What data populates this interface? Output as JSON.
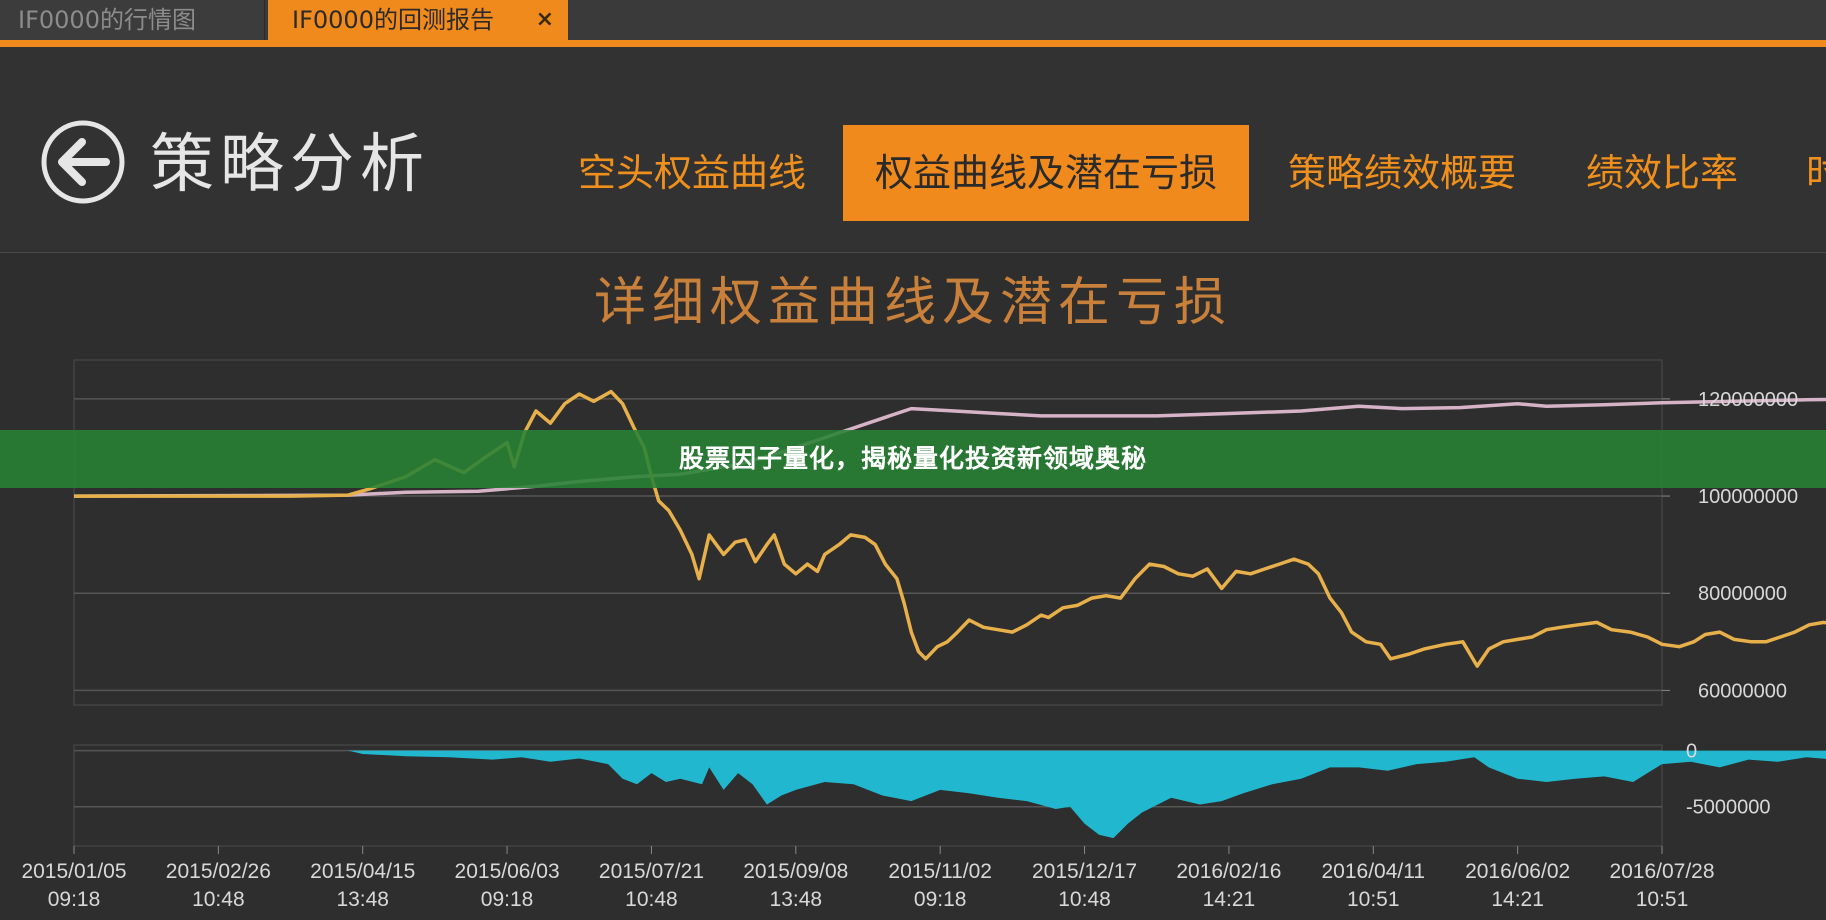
{
  "tabs": [
    {
      "label": "IF0000的行情图",
      "active": false
    },
    {
      "label": "IF0000的回测报告",
      "active": true
    }
  ],
  "tab_close_glyph": "×",
  "header": {
    "back_icon": "back-arrow-circle-icon",
    "title": "策略分析",
    "nav": [
      "空头权益曲线",
      "权益曲线及潜在亏损",
      "策略绩效概要",
      "绩效比率",
      "时"
    ],
    "active_nav_index": 1
  },
  "colors": {
    "accent": "#f08a1c",
    "equity_line": "#e8b04a",
    "short_equity_line": "#d7b3c7",
    "drawdown_fill": "#21b8cf",
    "background": "#2e2e2e"
  },
  "banner": {
    "text": "股票因子量化，揭秘量化投资新领域奥秘"
  },
  "chart_data": [
    {
      "type": "line",
      "title": "详细权益曲线及潜在亏损",
      "ylim": [
        57000000,
        128000000
      ],
      "yticks": [
        120000000,
        100000000,
        80000000,
        60000000
      ],
      "ytick_labels": [
        "120000000",
        "100000000",
        "80000000",
        "60000000"
      ],
      "x_labels": [
        [
          "2015/01/05",
          "09:18"
        ],
        [
          "2015/02/26",
          "10:48"
        ],
        [
          "2015/04/15",
          "13:48"
        ],
        [
          "2015/06/03",
          "09:18"
        ],
        [
          "2015/07/21",
          "10:48"
        ],
        [
          "2015/09/08",
          "13:48"
        ],
        [
          "2015/11/02",
          "09:18"
        ],
        [
          "2015/12/17",
          "10:48"
        ],
        [
          "2016/02/16",
          "14:21"
        ],
        [
          "2016/04/11",
          "10:51"
        ],
        [
          "2016/06/02",
          "14:21"
        ],
        [
          "2016/07/28",
          "10:51"
        ]
      ],
      "grid": true,
      "series": [
        {
          "name": "",
          "color": "#e8b04a",
          "points": [
            [
              0,
              100000000
            ],
            [
              1.5,
              100000000
            ],
            [
              1.9,
              100200000
            ],
            [
              2.05,
              101500000
            ],
            [
              2.3,
              104000000
            ],
            [
              2.5,
              107500000
            ],
            [
              2.7,
              104800000
            ],
            [
              2.85,
              108000000
            ],
            [
              3.0,
              111000000
            ],
            [
              3.05,
              106000000
            ],
            [
              3.12,
              113000000
            ],
            [
              3.2,
              117500000
            ],
            [
              3.3,
              115000000
            ],
            [
              3.4,
              119000000
            ],
            [
              3.5,
              121000000
            ],
            [
              3.6,
              119500000
            ],
            [
              3.72,
              121500000
            ],
            [
              3.8,
              119000000
            ],
            [
              3.88,
              114000000
            ],
            [
              3.95,
              110000000
            ],
            [
              4.0,
              104000000
            ],
            [
              4.05,
              99000000
            ],
            [
              4.12,
              97000000
            ],
            [
              4.2,
              93000000
            ],
            [
              4.28,
              88000000
            ],
            [
              4.33,
              83000000
            ],
            [
              4.4,
              92000000
            ],
            [
              4.5,
              88000000
            ],
            [
              4.58,
              90500000
            ],
            [
              4.65,
              91000000
            ],
            [
              4.72,
              86500000
            ],
            [
              4.8,
              90000000
            ],
            [
              4.85,
              92000000
            ],
            [
              4.92,
              86000000
            ],
            [
              5.0,
              84000000
            ],
            [
              5.08,
              86000000
            ],
            [
              5.15,
              84500000
            ],
            [
              5.2,
              88000000
            ],
            [
              5.3,
              90000000
            ],
            [
              5.38,
              92000000
            ],
            [
              5.48,
              91500000
            ],
            [
              5.55,
              90000000
            ],
            [
              5.62,
              86000000
            ],
            [
              5.7,
              83000000
            ],
            [
              5.75,
              78000000
            ],
            [
              5.8,
              72000000
            ],
            [
              5.85,
              68000000
            ],
            [
              5.9,
              66500000
            ],
            [
              5.98,
              69000000
            ],
            [
              6.05,
              70000000
            ],
            [
              6.12,
              72000000
            ],
            [
              6.2,
              74500000
            ],
            [
              6.3,
              73000000
            ],
            [
              6.4,
              72500000
            ],
            [
              6.5,
              72000000
            ],
            [
              6.6,
              73500000
            ],
            [
              6.7,
              75500000
            ],
            [
              6.75,
              75000000
            ],
            [
              6.85,
              77000000
            ],
            [
              6.95,
              77500000
            ],
            [
              7.05,
              79000000
            ],
            [
              7.15,
              79500000
            ],
            [
              7.25,
              79000000
            ],
            [
              7.35,
              83000000
            ],
            [
              7.45,
              86000000
            ],
            [
              7.55,
              85500000
            ],
            [
              7.65,
              84000000
            ],
            [
              7.75,
              83500000
            ],
            [
              7.85,
              85000000
            ],
            [
              7.95,
              81000000
            ],
            [
              8.05,
              84500000
            ],
            [
              8.15,
              84000000
            ],
            [
              8.25,
              85000000
            ],
            [
              8.35,
              86000000
            ],
            [
              8.45,
              87000000
            ],
            [
              8.55,
              86000000
            ],
            [
              8.62,
              84000000
            ],
            [
              8.7,
              79000000
            ],
            [
              8.78,
              76000000
            ],
            [
              8.85,
              72000000
            ],
            [
              8.95,
              70000000
            ],
            [
              9.05,
              69500000
            ],
            [
              9.12,
              66500000
            ],
            [
              9.25,
              67500000
            ],
            [
              9.35,
              68500000
            ],
            [
              9.5,
              69500000
            ],
            [
              9.62,
              70000000
            ],
            [
              9.72,
              65000000
            ],
            [
              9.8,
              68500000
            ],
            [
              9.9,
              70000000
            ],
            [
              10.0,
              70500000
            ],
            [
              10.1,
              71000000
            ],
            [
              10.2,
              72500000
            ],
            [
              10.3,
              73000000
            ],
            [
              10.42,
              73500000
            ],
            [
              10.55,
              74000000
            ],
            [
              10.65,
              72500000
            ],
            [
              10.78,
              72000000
            ],
            [
              10.9,
              71000000
            ],
            [
              11.0,
              69500000
            ],
            [
              11.12,
              69000000
            ],
            [
              11.22,
              70000000
            ],
            [
              11.3,
              71500000
            ],
            [
              11.4,
              72000000
            ],
            [
              11.5,
              70500000
            ],
            [
              11.62,
              70000000
            ],
            [
              11.72,
              70000000
            ],
            [
              11.82,
              71000000
            ],
            [
              11.92,
              72000000
            ],
            [
              12.02,
              73500000
            ],
            [
              12.12,
              74000000
            ],
            [
              12.22,
              73500000
            ],
            [
              12.32,
              73000000
            ],
            [
              12.42,
              72500000
            ],
            [
              12.52,
              74000000
            ],
            [
              12.62,
              74500000
            ],
            [
              12.68,
              76500000
            ],
            [
              12.72,
              78000000
            ]
          ]
        },
        {
          "name": "",
          "color": "#d7b3c7",
          "points": [
            [
              0,
              100000000
            ],
            [
              1.9,
              100200000
            ],
            [
              2.3,
              100800000
            ],
            [
              2.8,
              101000000
            ],
            [
              3.2,
              102000000
            ],
            [
              3.5,
              103000000
            ],
            [
              3.9,
              104000000
            ],
            [
              4.2,
              104500000
            ],
            [
              4.6,
              106500000
            ],
            [
              4.9,
              109000000
            ],
            [
              5.3,
              113000000
            ],
            [
              5.6,
              116000000
            ],
            [
              5.8,
              118000000
            ],
            [
              6.1,
              117500000
            ],
            [
              6.4,
              117000000
            ],
            [
              6.7,
              116500000
            ],
            [
              7.0,
              116500000
            ],
            [
              7.5,
              116500000
            ],
            [
              8.0,
              117000000
            ],
            [
              8.5,
              117500000
            ],
            [
              8.9,
              118500000
            ],
            [
              9.2,
              118000000
            ],
            [
              9.6,
              118200000
            ],
            [
              10.0,
              119000000
            ],
            [
              10.2,
              118500000
            ],
            [
              10.6,
              118800000
            ],
            [
              11.0,
              119200000
            ],
            [
              11.5,
              119500000
            ],
            [
              12.0,
              119800000
            ],
            [
              12.4,
              120000000
            ],
            [
              12.6,
              120500000
            ],
            [
              12.72,
              121000000
            ]
          ]
        }
      ]
    },
    {
      "type": "area",
      "ylim": [
        -8500000,
        500000
      ],
      "yticks": [
        0,
        -5000000
      ],
      "ytick_labels": [
        "0",
        "-5000000"
      ],
      "grid": true,
      "series": [
        {
          "name": "",
          "color": "#21b8cf",
          "points": [
            [
              0,
              0
            ],
            [
              1.9,
              0
            ],
            [
              2.0,
              -300000
            ],
            [
              2.3,
              -500000
            ],
            [
              2.6,
              -600000
            ],
            [
              2.9,
              -800000
            ],
            [
              3.1,
              -600000
            ],
            [
              3.3,
              -1000000
            ],
            [
              3.5,
              -700000
            ],
            [
              3.7,
              -1200000
            ],
            [
              3.8,
              -2500000
            ],
            [
              3.9,
              -3000000
            ],
            [
              4.0,
              -2000000
            ],
            [
              4.1,
              -2800000
            ],
            [
              4.2,
              -2500000
            ],
            [
              4.35,
              -3000000
            ],
            [
              4.4,
              -1500000
            ],
            [
              4.5,
              -3500000
            ],
            [
              4.6,
              -2000000
            ],
            [
              4.7,
              -3000000
            ],
            [
              4.8,
              -4800000
            ],
            [
              4.9,
              -4000000
            ],
            [
              5.0,
              -3500000
            ],
            [
              5.2,
              -2800000
            ],
            [
              5.4,
              -3000000
            ],
            [
              5.6,
              -4000000
            ],
            [
              5.8,
              -4500000
            ],
            [
              6.0,
              -3500000
            ],
            [
              6.2,
              -3800000
            ],
            [
              6.4,
              -4200000
            ],
            [
              6.6,
              -4500000
            ],
            [
              6.8,
              -5200000
            ],
            [
              6.9,
              -5000000
            ],
            [
              7.0,
              -6500000
            ],
            [
              7.1,
              -7500000
            ],
            [
              7.2,
              -7800000
            ],
            [
              7.3,
              -6500000
            ],
            [
              7.4,
              -5500000
            ],
            [
              7.6,
              -4200000
            ],
            [
              7.8,
              -4800000
            ],
            [
              7.95,
              -4500000
            ],
            [
              8.1,
              -3800000
            ],
            [
              8.3,
              -3000000
            ],
            [
              8.5,
              -2500000
            ],
            [
              8.7,
              -1500000
            ],
            [
              8.9,
              -1500000
            ],
            [
              9.1,
              -1800000
            ],
            [
              9.3,
              -1200000
            ],
            [
              9.5,
              -1000000
            ],
            [
              9.7,
              -600000
            ],
            [
              9.8,
              -1500000
            ],
            [
              9.9,
              -2000000
            ],
            [
              10.0,
              -2500000
            ],
            [
              10.2,
              -2800000
            ],
            [
              10.4,
              -2500000
            ],
            [
              10.6,
              -2300000
            ],
            [
              10.8,
              -2800000
            ],
            [
              11.0,
              -1200000
            ],
            [
              11.2,
              -1000000
            ],
            [
              11.4,
              -1500000
            ],
            [
              11.6,
              -800000
            ],
            [
              11.8,
              -1000000
            ],
            [
              12.0,
              -600000
            ],
            [
              12.2,
              -800000
            ],
            [
              12.4,
              -700000
            ],
            [
              12.6,
              -900000
            ],
            [
              12.72,
              -500000
            ]
          ]
        }
      ]
    }
  ]
}
